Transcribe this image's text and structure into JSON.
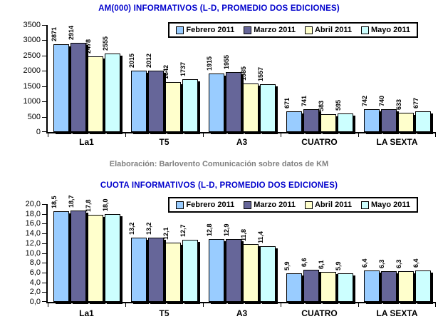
{
  "caption": "Elaboración: Barlovento Comunicación sobre datos de KM",
  "styles": {
    "title_color": "#0000CC",
    "caption_color": "#808080",
    "axis_color": "#000000",
    "background": "#FFFFFF",
    "shadow_color": "#000000"
  },
  "chart_data": [
    {
      "type": "bar",
      "title": "AM(000) INFORMATIVOS (L-D, PROMEDIO DOS EDICIONES)",
      "categories": [
        "La1",
        "T5",
        "A3",
        "CUATRO",
        "LA SEXTA"
      ],
      "series": [
        {
          "name": "Febrero 2011",
          "color": "#99CCFF",
          "values": [
            2871,
            2015,
            1915,
            671,
            742
          ]
        },
        {
          "name": "Marzo 2011",
          "color": "#666699",
          "values": [
            2914,
            2012,
            1955,
            741,
            740
          ]
        },
        {
          "name": "Abril 2011",
          "color": "#FFFFCC",
          "values": [
            2478,
            1642,
            1585,
            583,
            633
          ]
        },
        {
          "name": "Mayo 2011",
          "color": "#CCFFFF",
          "values": [
            2555,
            1737,
            1557,
            595,
            677
          ]
        }
      ],
      "ylim": [
        0,
        3500
      ],
      "ystep": 500,
      "decimals": 0,
      "grid": false,
      "bar_labels": true,
      "legend_position": "top-right",
      "xlabel": "",
      "ylabel": ""
    },
    {
      "type": "bar",
      "title": "CUOTA INFORMATIVOS (L-D, PROMEDIO DOS EDICIONES)",
      "categories": [
        "La1",
        "T5",
        "A3",
        "CUATRO",
        "LA SEXTA"
      ],
      "series": [
        {
          "name": "Febrero 2011",
          "color": "#99CCFF",
          "values": [
            18.5,
            13.2,
            12.8,
            5.9,
            6.4
          ]
        },
        {
          "name": "Marzo 2011",
          "color": "#666699",
          "values": [
            18.7,
            13.2,
            12.9,
            6.6,
            6.3
          ]
        },
        {
          "name": "Abril 2011",
          "color": "#FFFFCC",
          "values": [
            17.8,
            12.1,
            11.8,
            6.1,
            6.3
          ]
        },
        {
          "name": "Mayo 2011",
          "color": "#CCFFFF",
          "values": [
            18.0,
            12.7,
            11.4,
            5.9,
            6.4
          ]
        }
      ],
      "ylim": [
        0,
        20
      ],
      "ystep": 2,
      "decimals": 1,
      "grid": false,
      "bar_labels": true,
      "legend_position": "top-right",
      "xlabel": "",
      "ylabel": ""
    }
  ]
}
